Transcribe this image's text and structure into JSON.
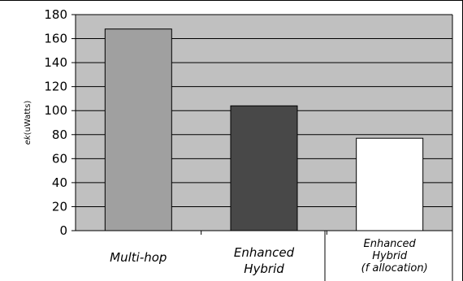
{
  "chart_data": {
    "type": "bar",
    "categories": [
      [
        "Multi-hop"
      ],
      [
        "Enhanced",
        "Hybrid"
      ],
      [
        "Enhanced",
        "Hybrid",
        "(f allocation)"
      ]
    ],
    "values": [
      168,
      104,
      77
    ],
    "bar_colors": [
      "#a0a0a0",
      "#484848",
      "#ffffff"
    ],
    "ylabel_italic": "ek",
    "ylabel_rest": "(uWatts)",
    "ylim": [
      0,
      180
    ],
    "yticks": [
      0,
      20,
      40,
      60,
      80,
      100,
      120,
      140,
      160,
      180
    ],
    "grid": true,
    "legend": "none",
    "plot_background": "#c0c0c0"
  }
}
